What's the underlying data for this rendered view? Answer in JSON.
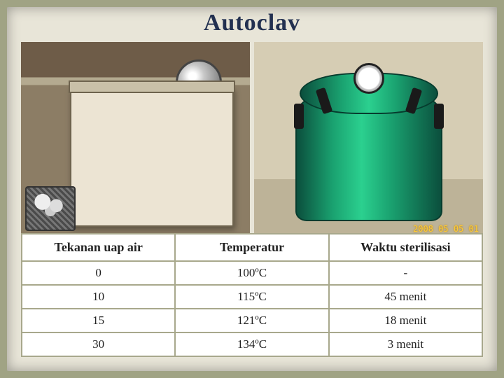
{
  "title": "Autoclav",
  "rightPhoto": {
    "datestamp": "2008 05 05 01"
  },
  "table": {
    "columns": [
      "Tekanan uap air",
      "Temperatur",
      "Waktu sterilisasi"
    ],
    "rows": [
      [
        "0",
        "100ºC",
        "-"
      ],
      [
        "10",
        "115ºC",
        "45 menit"
      ],
      [
        "15",
        "121ºC",
        "18 menit"
      ],
      [
        "30",
        "134ºC",
        "3 menit"
      ]
    ],
    "border_color": "#a8a88c",
    "cell_bg": "#ffffff",
    "header_fontsize": 18,
    "cell_fontsize": 17
  },
  "layout": {
    "slide_bg": "#a0a384",
    "panel_bg": "#e8e5d8",
    "title_color": "#223050",
    "title_fontsize": 34
  }
}
